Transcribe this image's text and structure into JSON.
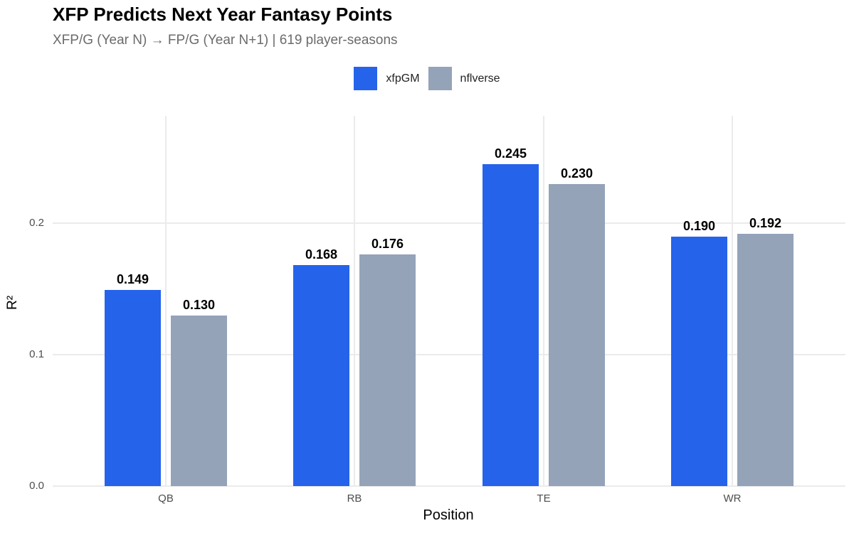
{
  "header": {
    "title": "XFP Predicts Next Year Fantasy Points",
    "subtitle": "XFP/G (Year N) → FP/G (Year N+1) | 619 player-seasons"
  },
  "legend": {
    "items": [
      {
        "label": "xfpGM",
        "color": "#2563eb"
      },
      {
        "label": "nflverse",
        "color": "#94a3b8"
      }
    ]
  },
  "axes": {
    "xlabel": "Position",
    "ylabel": "R²",
    "yticks": [
      "0.0",
      "0.1",
      "0.2"
    ],
    "xticks": [
      "QB",
      "RB",
      "TE",
      "WR"
    ]
  },
  "chart_data": {
    "type": "bar",
    "title": "XFP Predicts Next Year Fantasy Points",
    "subtitle": "XFP/G (Year N) → FP/G (Year N+1) | 619 player-seasons",
    "xlabel": "Position",
    "ylabel": "R²",
    "categories": [
      "QB",
      "RB",
      "TE",
      "WR"
    ],
    "series": [
      {
        "name": "xfpGM",
        "color": "#2563eb",
        "values": [
          0.149,
          0.168,
          0.245,
          0.19
        ],
        "labels": [
          "0.149",
          "0.168",
          "0.245",
          "0.190"
        ]
      },
      {
        "name": "nflverse",
        "color": "#94a3b8",
        "values": [
          0.13,
          0.176,
          0.23,
          0.192
        ],
        "labels": [
          "0.130",
          "0.176",
          "0.230",
          "0.192"
        ]
      }
    ],
    "ylim": [
      0,
      0.26
    ],
    "yticks": [
      0.0,
      0.1,
      0.2
    ],
    "grid": true,
    "legend_position": "top"
  }
}
